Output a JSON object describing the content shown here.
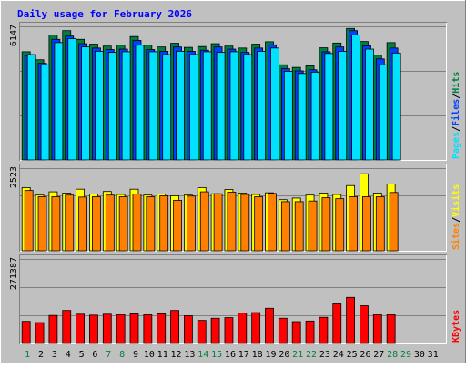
{
  "chart_data": {
    "type": "bar",
    "title": "Daily usage for February 2026",
    "x": [
      "1",
      "2",
      "3",
      "4",
      "5",
      "6",
      "7",
      "8",
      "9",
      "10",
      "11",
      "12",
      "13",
      "14",
      "15",
      "16",
      "17",
      "18",
      "19",
      "20",
      "21",
      "22",
      "23",
      "24",
      "25",
      "26",
      "27",
      "28",
      "29",
      "30",
      "31"
    ],
    "weekend_days": [
      1,
      7,
      8,
      14,
      15,
      21,
      22,
      28,
      29
    ],
    "panels": [
      {
        "id": "top",
        "ymax_label": "6147",
        "ymax": 6147,
        "right_label_parts": [
          {
            "text": "Pages",
            "color": "#00e0ff"
          },
          {
            "text": "/",
            "color": "#000000"
          },
          {
            "text": "Files",
            "color": "#0040ff"
          },
          {
            "text": "/",
            "color": "#000000"
          },
          {
            "text": "Hits",
            "color": "#008040"
          }
        ],
        "series": [
          {
            "name": "Hits",
            "color": "#008040",
            "values": [
              4980,
              4610,
              5750,
              5950,
              5550,
              5330,
              5240,
              5280,
              5680,
              5280,
              5200,
              5370,
              5180,
              5220,
              5350,
              5240,
              5150,
              5330,
              5440,
              4380,
              4260,
              4330,
              5160,
              5380,
              6050,
              5450,
              4820,
              5400
            ]
          },
          {
            "name": "Files",
            "color": "#0040ff",
            "values": [
              4800,
              4450,
              5550,
              5700,
              5350,
              5150,
              5080,
              5100,
              5500,
              5080,
              5000,
              5200,
              5000,
              5050,
              5200,
              5100,
              4950,
              5150,
              5300,
              4200,
              4100,
              4150,
              4980,
              5200,
              5950,
              5250,
              4650,
              5150
            ]
          },
          {
            "name": "Pages",
            "color": "#00e0ff",
            "values": [
              4850,
              4380,
              5400,
              5580,
              5200,
              5000,
              4950,
              4980,
              5280,
              4980,
              4850,
              5000,
              4850,
              4980,
              4950,
              4980,
              4850,
              5000,
              5150,
              4080,
              3980,
              4040,
              4900,
              5000,
              5750,
              5100,
              4380,
              4920
            ]
          }
        ]
      },
      {
        "id": "middle",
        "ymax_label": "2523",
        "ymax": 2523,
        "right_label_parts": [
          {
            "text": "Sites",
            "color": "#ff8000"
          },
          {
            "text": "/",
            "color": "#000000"
          },
          {
            "text": "Visits",
            "color": "#ffff00"
          }
        ],
        "series": [
          {
            "name": "Visits",
            "color": "#ffff00",
            "values": [
              1930,
              1700,
              1800,
              1760,
              1880,
              1730,
              1810,
              1720,
              1880,
              1700,
              1730,
              1680,
              1700,
              1930,
              1740,
              1870,
              1760,
              1720,
              1770,
              1560,
              1610,
              1700,
              1760,
              1720,
              1990,
              2350,
              1760,
              2040
            ]
          },
          {
            "name": "Sites",
            "color": "#ff8000",
            "values": [
              1840,
              1650,
              1650,
              1700,
              1640,
              1650,
              1700,
              1650,
              1730,
              1650,
              1680,
              1540,
              1670,
              1800,
              1740,
              1790,
              1720,
              1650,
              1750,
              1500,
              1500,
              1520,
              1620,
              1590,
              1650,
              1650,
              1650,
              1780
            ]
          }
        ]
      },
      {
        "id": "bottom",
        "ymax_label": "271387",
        "ymax": 271387,
        "right_label_parts": [
          {
            "text": "KBytes",
            "color": "#ff0000"
          }
        ],
        "series": [
          {
            "name": "KBytes",
            "color": "#ff0000",
            "values": [
              71000,
              67000,
              90000,
              106000,
              94000,
              91000,
              94000,
              92000,
              95000,
              92000,
              95000,
              106000,
              89000,
              74000,
              81000,
              83000,
              98000,
              99000,
              113000,
              81000,
              70000,
              72000,
              84000,
              127000,
              148000,
              121000,
              92000,
              92000
            ]
          }
        ]
      }
    ]
  }
}
